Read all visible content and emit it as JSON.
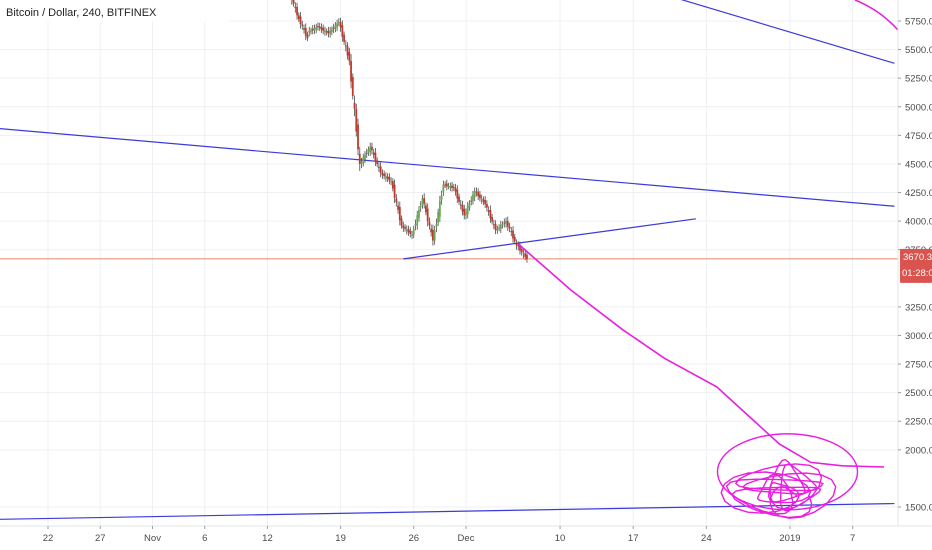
{
  "header": {
    "title": "Bitcoin / Dollar, 240, BITFINEX"
  },
  "colors": {
    "up": "#6aa84f",
    "down": "#c0392b",
    "trendline": "#3b3bdc",
    "drawing": "#e91ee0",
    "price_line": "#e8836f",
    "badge": "#d9534f",
    "grid": "#eef0f4"
  },
  "price_badge": {
    "price": "3670.3",
    "countdown": "01:28:04"
  },
  "chart_data": {
    "type": "candlestick",
    "title": "Bitcoin / Dollar, 240, BITFINEX",
    "xlabel": "",
    "ylabel": "",
    "ylim": [
      1340,
      6100
    ],
    "x_ticks": [
      "22",
      "27",
      "Nov",
      "6",
      "12",
      "19",
      "26",
      "Dec",
      "10",
      "17",
      "24",
      "2019",
      "7"
    ],
    "x_tick_dates": [
      "2018-10-22",
      "2018-10-27",
      "2018-11-01",
      "2018-11-06",
      "2018-11-12",
      "2018-11-19",
      "2018-11-26",
      "2018-12-01",
      "2018-12-10",
      "2018-12-17",
      "2018-12-24",
      "2019-01-01",
      "2019-01-07"
    ],
    "y_ticks": [
      "5750.0",
      "5500.0",
      "5250.0",
      "5000.0",
      "4750.0",
      "4500.0",
      "4250.0",
      "4000.0",
      "3750.0",
      "3250.0",
      "3000.0",
      "2750.0",
      "2500.0",
      "2250.0",
      "2000.0",
      "1500.0"
    ],
    "grid": true,
    "last_price": 3670.3,
    "series": [
      {
        "kind": "candles",
        "points": [
          [
            "2018-11-14",
            6100,
            5800
          ],
          [
            "2018-11-15",
            5800,
            5600
          ],
          [
            "2018-11-16",
            5650,
            5700
          ],
          [
            "2018-11-17",
            5700,
            5640
          ],
          [
            "2018-11-18",
            5640,
            5740
          ],
          [
            "2018-11-19",
            5740,
            5400
          ],
          [
            "2018-11-20",
            5400,
            4500
          ],
          [
            "2018-11-21",
            4500,
            4650
          ],
          [
            "2018-11-22",
            4650,
            4420
          ],
          [
            "2018-11-23",
            4420,
            4350
          ],
          [
            "2018-11-24",
            4350,
            3960
          ],
          [
            "2018-11-25",
            3960,
            3880
          ],
          [
            "2018-11-26",
            3880,
            4200
          ],
          [
            "2018-11-27",
            4200,
            3830
          ],
          [
            "2018-11-28",
            3830,
            4320
          ],
          [
            "2018-11-29",
            4320,
            4290
          ],
          [
            "2018-11-30",
            4290,
            4050
          ],
          [
            "2018-12-01",
            4050,
            4260
          ],
          [
            "2018-12-02",
            4260,
            4150
          ],
          [
            "2018-12-03",
            4150,
            3920
          ],
          [
            "2018-12-04",
            3920,
            4000
          ],
          [
            "2018-12-05",
            4000,
            3790
          ],
          [
            "2018-12-06",
            3790,
            3670
          ]
        ]
      },
      {
        "kind": "trendlines",
        "lines": [
          [
            [
              "2018-10-16",
              4820
            ],
            [
              "2019-01-11",
              4130
            ]
          ],
          [
            [
              "2018-10-16",
              1390
            ],
            [
              "2019-01-11",
              1530
            ]
          ],
          [
            [
              "2018-11-25",
              3670
            ],
            [
              "2018-12-23",
              4020
            ]
          ],
          [
            [
              "2018-12-12",
              6200
            ],
            [
              "2019-01-11",
              5380
            ]
          ]
        ]
      },
      {
        "kind": "drawing",
        "points": [
          [
            "2018-12-06",
            3800
          ],
          [
            "2018-12-11",
            3400
          ],
          [
            "2018-12-16",
            3050
          ],
          [
            "2018-12-20",
            2800
          ],
          [
            "2018-12-25",
            2550
          ],
          [
            "2018-12-28",
            2300
          ],
          [
            "2018-12-31",
            2050
          ],
          [
            "2019-01-03",
            1890
          ],
          [
            "2019-01-06",
            1860
          ],
          [
            "2019-01-10",
            1850
          ]
        ]
      }
    ]
  }
}
